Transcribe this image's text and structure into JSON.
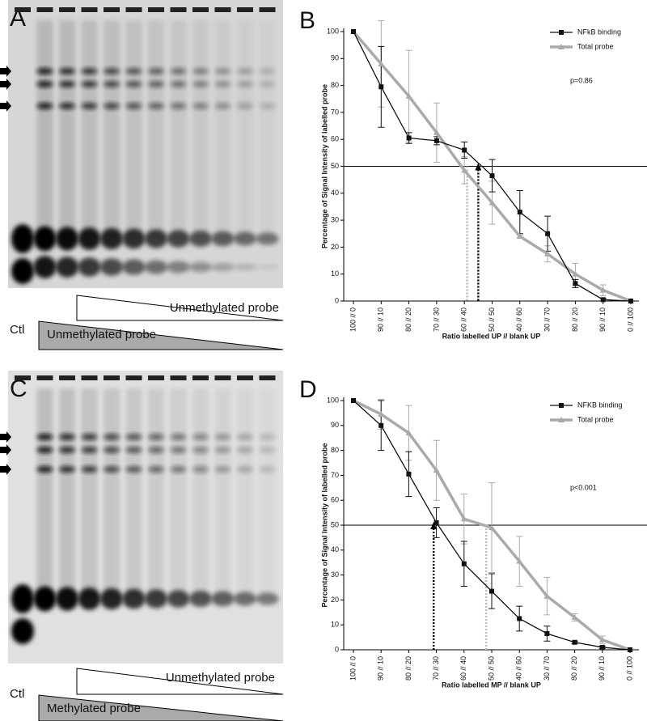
{
  "gels": [
    {
      "label": "A",
      "control": "Ctl",
      "top_wedge": "Unmethylated probe",
      "bottom_wedge": "Unmethylated probe"
    },
    {
      "label": "C",
      "control": "Ctl",
      "top_wedge": "Unmethylated probe",
      "bottom_wedge": "Methylated probe"
    }
  ],
  "chart_data": [
    {
      "type": "line",
      "panel_label": "B",
      "ylabel": "Percentage of Signal Intensity of labelled probe",
      "xlabel": "Ratio labelled UP // blank UP",
      "annotation": "p=0.86",
      "categories": [
        "100 // 0",
        "90 // 10",
        "80 // 20",
        "70 // 30",
        "60 // 40",
        "50 // 50",
        "40 // 60",
        "30 // 70",
        "80 // 20",
        "90 // 10",
        "0 // 100"
      ],
      "ylim": [
        0,
        100
      ],
      "yticks": [
        0,
        10,
        20,
        30,
        40,
        50,
        60,
        70,
        80,
        90,
        100
      ],
      "hline": 50,
      "series": [
        {
          "name": "NFkB binding",
          "color": "#111111",
          "marker": "square",
          "values": [
            100,
            79.5,
            60.5,
            59.5,
            56,
            46.5,
            33,
            25,
            6.5,
            0.5,
            0
          ],
          "errors": [
            0,
            15,
            2,
            1.5,
            3,
            6,
            8,
            6.5,
            1.5,
            0.5,
            0
          ],
          "crossing": 4.5
        },
        {
          "name": "Total probe",
          "color": "#aaaaaa",
          "marker": "triangle",
          "values": [
            100,
            88,
            76,
            62.5,
            48.5,
            36.5,
            24,
            17.5,
            10,
            4,
            0
          ],
          "errors": [
            0,
            16,
            17,
            11,
            5,
            8,
            0.5,
            3,
            4,
            2,
            0
          ],
          "crossing": 4.1
        }
      ]
    },
    {
      "type": "line",
      "panel_label": "D",
      "ylabel": "Percentage of Signal Intensity of labelled probe",
      "xlabel": "Ratio labelled MP // blank UP",
      "annotation": "p<0.001",
      "categories": [
        "100 // 0",
        "90 // 10",
        "80 // 20",
        "70 // 30",
        "60 // 40",
        "50 // 50",
        "40 // 60",
        "30 // 70",
        "80 // 20",
        "90 // 10",
        "0 // 100"
      ],
      "ylim": [
        0,
        100
      ],
      "yticks": [
        0,
        10,
        20,
        30,
        40,
        50,
        60,
        70,
        80,
        90,
        100
      ],
      "hline": 50,
      "series": [
        {
          "name": "NFKB binding",
          "color": "#111111",
          "marker": "square",
          "values": [
            100,
            90,
            70.5,
            51,
            34.5,
            23.5,
            12.5,
            6.5,
            3,
            1,
            0
          ],
          "errors": [
            0,
            10,
            9,
            6,
            9,
            7,
            5,
            3,
            0.5,
            0.5,
            0
          ],
          "crossing": 2.9
        },
        {
          "name": "Total probe",
          "color": "#aaaaaa",
          "marker": "triangle",
          "values": [
            100,
            94.5,
            87,
            72,
            52.5,
            49,
            35.5,
            21.5,
            13,
            4,
            0
          ],
          "errors": [
            0,
            6,
            11,
            12,
            10,
            18,
            10,
            7.5,
            1.5,
            1.5,
            0
          ],
          "crossing": 4.8
        }
      ]
    }
  ]
}
